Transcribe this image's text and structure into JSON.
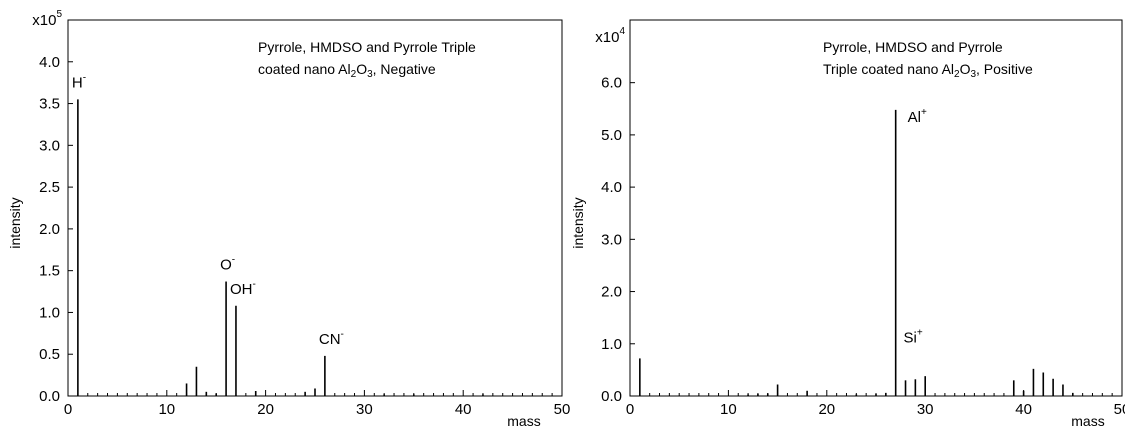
{
  "chart_data": [
    {
      "type": "bar",
      "title_line1": "Pyrrole, HMDSO and Pyrrole Triple",
      "title_line2": {
        "pre": "coated nano Al",
        "s1": "2",
        "mid": "O",
        "s2": "3",
        "post": ", Negative"
      },
      "xlabel": "mass",
      "ylabel": "intensity",
      "scale_label": {
        "base": "x10",
        "exp": "5"
      },
      "xlim": [
        0,
        50
      ],
      "ylim": [
        0,
        4.5
      ],
      "xticks": [
        0,
        10,
        20,
        30,
        40,
        50
      ],
      "yticks": [
        "0.0",
        "0.5",
        "1.0",
        "1.5",
        "2.0",
        "2.5",
        "3.0",
        "3.5",
        "4.0"
      ],
      "peaks": [
        {
          "x": 1,
          "y": 3.55
        },
        {
          "x": 12,
          "y": 0.15
        },
        {
          "x": 13,
          "y": 0.35
        },
        {
          "x": 14,
          "y": 0.05
        },
        {
          "x": 15,
          "y": 0.03
        },
        {
          "x": 16,
          "y": 1.37
        },
        {
          "x": 17,
          "y": 1.08
        },
        {
          "x": 19,
          "y": 0.06
        },
        {
          "x": 24,
          "y": 0.05
        },
        {
          "x": 25,
          "y": 0.09
        },
        {
          "x": 26,
          "y": 0.48
        },
        {
          "x": 32,
          "y": 0.02
        },
        {
          "x": 35,
          "y": 0.02
        },
        {
          "x": 42,
          "y": 0.02
        }
      ],
      "peak_labels": [
        {
          "x": 1,
          "base": "H",
          "sup": "-"
        },
        {
          "x": 16,
          "base": "O",
          "sup": "-"
        },
        {
          "x": 17,
          "base": "OH",
          "sup": "-"
        },
        {
          "x": 26,
          "base": "CN",
          "sup": "-"
        }
      ]
    },
    {
      "type": "bar",
      "title_line1": "Pyrrole, HMDSO and Pyrrole",
      "title_line2": {
        "pre": "Triple coated nano Al",
        "s1": "2",
        "mid": "O",
        "s2": "3",
        "post": ", Positive"
      },
      "xlabel": "mass",
      "ylabel": "intensity",
      "scale_label": {
        "base": "x10",
        "exp": "4"
      },
      "xlim": [
        0,
        50
      ],
      "ylim": [
        0,
        7.2
      ],
      "xticks": [
        0,
        10,
        20,
        30,
        40,
        50
      ],
      "yticks": [
        "0.0",
        "1.0",
        "2.0",
        "3.0",
        "4.0",
        "5.0",
        "6.0"
      ],
      "peaks": [
        {
          "x": 1,
          "y": 0.72
        },
        {
          "x": 12,
          "y": 0.03
        },
        {
          "x": 13,
          "y": 0.04
        },
        {
          "x": 14,
          "y": 0.05
        },
        {
          "x": 15,
          "y": 0.22
        },
        {
          "x": 18,
          "y": 0.1
        },
        {
          "x": 23,
          "y": 0.03
        },
        {
          "x": 25,
          "y": 0.04
        },
        {
          "x": 26,
          "y": 0.06
        },
        {
          "x": 27,
          "y": 5.48
        },
        {
          "x": 28,
          "y": 0.3
        },
        {
          "x": 29,
          "y": 0.32
        },
        {
          "x": 30,
          "y": 0.38
        },
        {
          "x": 39,
          "y": 0.3
        },
        {
          "x": 40,
          "y": 0.1
        },
        {
          "x": 41,
          "y": 0.52
        },
        {
          "x": 42,
          "y": 0.45
        },
        {
          "x": 43,
          "y": 0.33
        },
        {
          "x": 44,
          "y": 0.22
        },
        {
          "x": 45,
          "y": 0.06
        }
      ],
      "peak_labels": [
        {
          "x": 27,
          "base": "Al",
          "sup": "+",
          "pos": "top"
        },
        {
          "x": 28,
          "base": "Si",
          "sup": "+",
          "pos": "low"
        }
      ]
    }
  ]
}
